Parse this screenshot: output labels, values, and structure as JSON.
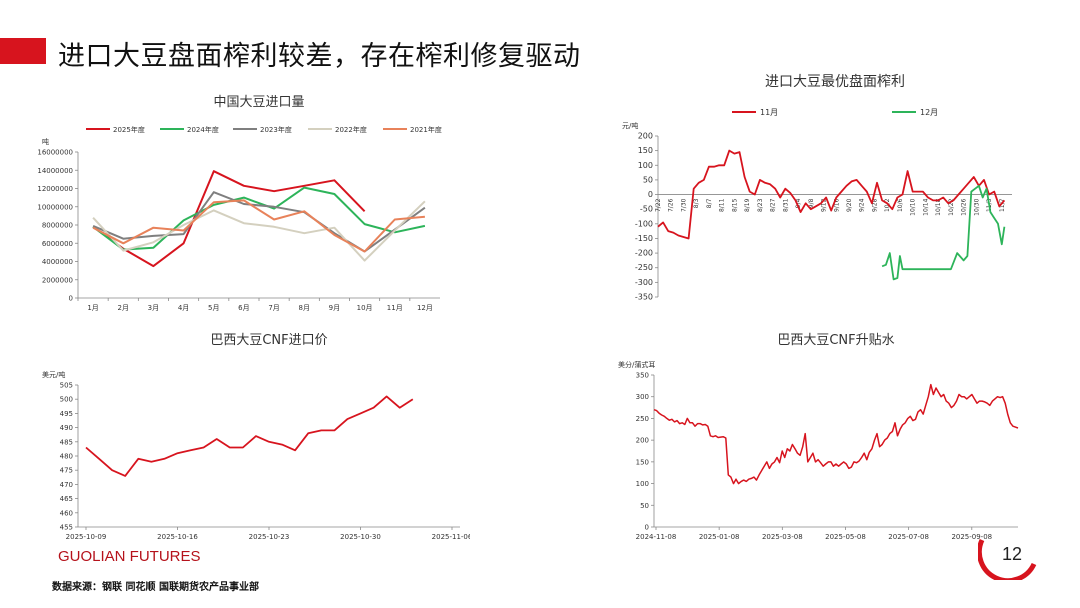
{
  "page": {
    "title": "进口大豆盘面榨利较差，存在榨利修复驱动",
    "brand": "GUOLIAN FUTURES",
    "source": "数据来源：钢联  同花顺  国联期货农产品事业部",
    "page_number": "12",
    "accent_color": "#d7141e"
  },
  "chart_data": [
    {
      "id": "c1",
      "type": "line",
      "title": "中国大豆进口量",
      "ylabel": "吨",
      "categories": [
        "1月",
        "2月",
        "3月",
        "4月",
        "5月",
        "6月",
        "7月",
        "8月",
        "9月",
        "10月",
        "11月",
        "12月"
      ],
      "ylim": [
        0,
        16000000
      ],
      "yticks": [
        0,
        2000000,
        4000000,
        6000000,
        8000000,
        10000000,
        12000000,
        14000000,
        16000000
      ],
      "legend_position": "top",
      "series": [
        {
          "name": "2025年度",
          "color": "#d7141e",
          "values": [
            7800000,
            5400000,
            3500000,
            6000000,
            13900000,
            12300000,
            11700000,
            12300000,
            12900000,
            9500000,
            null,
            null
          ]
        },
        {
          "name": "2024年度",
          "color": "#2db45a",
          "values": [
            7800000,
            5300000,
            5500000,
            8500000,
            10200000,
            11000000,
            9800000,
            12100000,
            11400000,
            8100000,
            7200000,
            7900000
          ]
        },
        {
          "name": "2023年度",
          "color": "#7f7f7f",
          "values": [
            7900000,
            6500000,
            6800000,
            7000000,
            11600000,
            10300000,
            10000000,
            9400000,
            7100000,
            5100000,
            7500000,
            9900000
          ]
        },
        {
          "name": "2022年度",
          "color": "#d4d0bf",
          "values": [
            8800000,
            5200000,
            6100000,
            8000000,
            9600000,
            8200000,
            7800000,
            7100000,
            7700000,
            4100000,
            7400000,
            10600000
          ]
        },
        {
          "name": "2021年度",
          "color": "#e8825a",
          "values": [
            7700000,
            6000000,
            7700000,
            7400000,
            10500000,
            10700000,
            8600000,
            9500000,
            6900000,
            5100000,
            8600000,
            8900000
          ]
        }
      ]
    },
    {
      "id": "c2",
      "type": "line",
      "title": "进口大豆最优盘面榨利",
      "ylabel": "元/吨",
      "ylim": [
        -350,
        200
      ],
      "yticks": [
        -350,
        -300,
        -250,
        -200,
        -150,
        -100,
        -50,
        0,
        50,
        100,
        150,
        200
      ],
      "legend_position": "top",
      "xticks": [
        "7/22",
        "7/26",
        "7/30",
        "8/3",
        "8/7",
        "8/11",
        "8/15",
        "8/19",
        "8/23",
        "8/27",
        "8/31",
        "9/4",
        "9/8",
        "9/12",
        "9/16",
        "9/20",
        "9/24",
        "9/28",
        "10/2",
        "10/6",
        "10/10",
        "10/14",
        "10/18",
        "10/22",
        "10/26",
        "10/30",
        "11/3",
        "11/7"
      ],
      "series": [
        {
          "name": "11月",
          "color": "#d7141e",
          "x": [
            0,
            0.5,
            1,
            2,
            3,
            3.3,
            4,
            5,
            5.6,
            6,
            6.5,
            7,
            7.6,
            8,
            8.8,
            9.5,
            10,
            10.5,
            11.5,
            12,
            12.5,
            13,
            14,
            14.5,
            15,
            16,
            17,
            17.3,
            17.6,
            18,
            18.5,
            19,
            19.5,
            20,
            20.3,
            21,
            21.8,
            22.3,
            22.7,
            23,
            23.5,
            24,
            24.5,
            25,
            25.7,
            26,
            26.8,
            27.5,
            28,
            28.8,
            29,
            29.5,
            30,
            30.5,
            31,
            32,
            32.5,
            33,
            33.5,
            34,
            34.5,
            35,
            35.5,
            36,
            36.3,
            36.7,
            37,
            37.5,
            38,
            38.5,
            39,
            39.5,
            40,
            40.5,
            41,
            41.5,
            42,
            42.5,
            43,
            43.5,
            44,
            44.5,
            45,
            45.5,
            46,
            46.5,
            47,
            47.5,
            48,
            48.5,
            49,
            49.5,
            50,
            50.5,
            51,
            51.5,
            52,
            52.5,
            53,
            53.5,
            54,
            54.5,
            55,
            55.5,
            56
          ],
          "y": [
            -110,
            -90,
            -120,
            -130,
            -140,
            -150,
            20,
            50,
            60,
            95,
            100,
            100,
            105,
            150,
            140,
            145,
            70,
            30,
            0,
            50,
            40,
            30,
            -10,
            20,
            15,
            -55,
            -40,
            -60,
            -30,
            -10,
            -5,
            -50,
            10,
            30,
            40,
            50,
            35,
            0,
            20,
            10,
            -30,
            -40,
            -50,
            0,
            20,
            -70,
            -30,
            0,
            10,
            80,
            10,
            10,
            10,
            10,
            -10,
            -20,
            -20,
            -10,
            -30,
            -20,
            0,
            20,
            40,
            60,
            40,
            30,
            60,
            0,
            0,
            -10,
            20,
            30,
            0,
            -20,
            -40,
            -30,
            -50,
            -80,
            -120,
            null,
            null,
            null,
            null,
            null,
            null,
            null,
            null,
            null,
            null,
            null,
            null,
            null,
            null,
            null,
            null,
            null,
            null,
            null,
            null,
            null,
            null,
            null,
            null,
            null,
            null
          ]
        },
        {
          "name": "12月",
          "color": "#2db45a",
          "x": [],
          "y": []
        }
      ]
    },
    {
      "id": "c3",
      "type": "line",
      "title": "巴西大豆CNF进口价",
      "ylabel": "美元/吨",
      "ylim": [
        455,
        505
      ],
      "yticks": [
        455,
        460,
        465,
        470,
        475,
        480,
        485,
        490,
        495,
        500,
        505
      ],
      "xticks": [
        "2025-10-09",
        "2025-10-16",
        "2025-10-23",
        "2025-10-30",
        "2025-11-06"
      ],
      "series": [
        {
          "name": "",
          "color": "#d7141e",
          "x": [
            0,
            1,
            2,
            3,
            4,
            5,
            6,
            7,
            8,
            9,
            10,
            11,
            12,
            13,
            14,
            15,
            16,
            17,
            18,
            19,
            20,
            21,
            22,
            23,
            24,
            25,
            26,
            27,
            28
          ],
          "y": [
            483,
            479,
            475,
            473,
            479,
            478,
            479,
            481,
            482,
            483,
            486,
            483,
            483,
            487,
            485,
            484,
            482,
            488,
            489,
            489,
            493,
            495,
            497,
            501,
            497,
            500,
            null,
            null,
            null
          ]
        }
      ]
    },
    {
      "id": "c4",
      "type": "line",
      "title": "巴西大豆CNF升贴水",
      "ylabel": "美分/蒲式耳",
      "ylim": [
        0,
        350
      ],
      "yticks": [
        0,
        50,
        100,
        150,
        200,
        250,
        300,
        350
      ],
      "xticks": [
        "2024-11-08",
        "2025-01-08",
        "2025-03-08",
        "2025-05-08",
        "2025-07-08",
        "2025-09-08"
      ],
      "series": [
        {
          "name": "",
          "color": "#d7141e",
          "x": [],
          "y": []
        }
      ]
    }
  ],
  "c2_extra": {
    "red_x": [
      0,
      0.4,
      0.8,
      1.2,
      1.6,
      2,
      2.4,
      2.8,
      3.2,
      3.6,
      4,
      4.4,
      4.8,
      5.2,
      5.6,
      6,
      6.4,
      6.8,
      7.2,
      7.6,
      8,
      8.4,
      8.8,
      9.2,
      9.6,
      10,
      10.4,
      10.8,
      11.2,
      11.6,
      12,
      12.4,
      12.8,
      13.2,
      13.6,
      14,
      14.4,
      14.8,
      15.2,
      15.6,
      16,
      16.4,
      16.8,
      17.2,
      17.6,
      18,
      18.4,
      18.8,
      19.2,
      19.6,
      20,
      20.4,
      20.8,
      21.2,
      21.6,
      22,
      22.4,
      22.8,
      23.2,
      23.6,
      24,
      24.4,
      24.8,
      25.2,
      25.6,
      26,
      26.4,
      26.8,
      27.2
    ],
    "red_y": [
      -110,
      -95,
      -125,
      -130,
      -140,
      -145,
      -150,
      20,
      40,
      50,
      95,
      95,
      100,
      100,
      150,
      140,
      145,
      60,
      10,
      0,
      50,
      40,
      35,
      20,
      -10,
      20,
      5,
      -20,
      -60,
      -30,
      -50,
      -40,
      -30,
      -10,
      -55,
      -10,
      10,
      30,
      45,
      50,
      30,
      10,
      -30,
      40,
      -20,
      -30,
      -50,
      -10,
      0,
      80,
      10,
      10,
      10,
      -10,
      -20,
      -20,
      -10,
      -30,
      -20,
      0,
      20,
      40,
      60,
      30,
      50,
      0,
      10,
      -40,
      -20,
      -10,
      -30,
      -60,
      -120
    ],
    "green_x": [
      17.6,
      17.9,
      18.2,
      18.5,
      18.8,
      19.0,
      19.2,
      19.5,
      19.8,
      20.1,
      20.4,
      21.0,
      22.0,
      23.0,
      23.5,
      24.0,
      24.3,
      24.6,
      24.9,
      25.2,
      25.5,
      25.8,
      26.1,
      26.4,
      26.7,
      27.0,
      27.2
    ],
    "green_y": [
      -245,
      -240,
      -200,
      -290,
      -285,
      -210,
      -255,
      -255,
      -255,
      -255,
      -255,
      -255,
      -255,
      -255,
      -200,
      -225,
      -210,
      10,
      20,
      30,
      -10,
      20,
      -60,
      -80,
      -100,
      -170,
      -110
    ]
  },
  "c4_extra": {
    "y": [
      270,
      268,
      262,
      258,
      255,
      250,
      246,
      248,
      242,
      245,
      238,
      240,
      236,
      250,
      240,
      240,
      232,
      238,
      238,
      235,
      236,
      232,
      210,
      208,
      210,
      206,
      207,
      208,
      205,
      120,
      115,
      100,
      110,
      100,
      105,
      108,
      105,
      110,
      112,
      115,
      108,
      120,
      130,
      140,
      150,
      135,
      145,
      150,
      160,
      148,
      175,
      160,
      180,
      175,
      190,
      180,
      170,
      165,
      185,
      215,
      150,
      160,
      170,
      150,
      155,
      148,
      140,
      145,
      150,
      150,
      140,
      145,
      140,
      145,
      150,
      145,
      135,
      138,
      150,
      148,
      152,
      160,
      170,
      155,
      172,
      180,
      200,
      215,
      185,
      190,
      200,
      205,
      215,
      220,
      240,
      210,
      225,
      235,
      240,
      250,
      255,
      245,
      248,
      265,
      270,
      260,
      280,
      300,
      328,
      305,
      320,
      310,
      300,
      305,
      290,
      285,
      275,
      280,
      290,
      305,
      300,
      300,
      295,
      300,
      305,
      295,
      285,
      290,
      290,
      288,
      285,
      280,
      290,
      295,
      300,
      298,
      300,
      285,
      260,
      240,
      232,
      230,
      228
    ]
  }
}
